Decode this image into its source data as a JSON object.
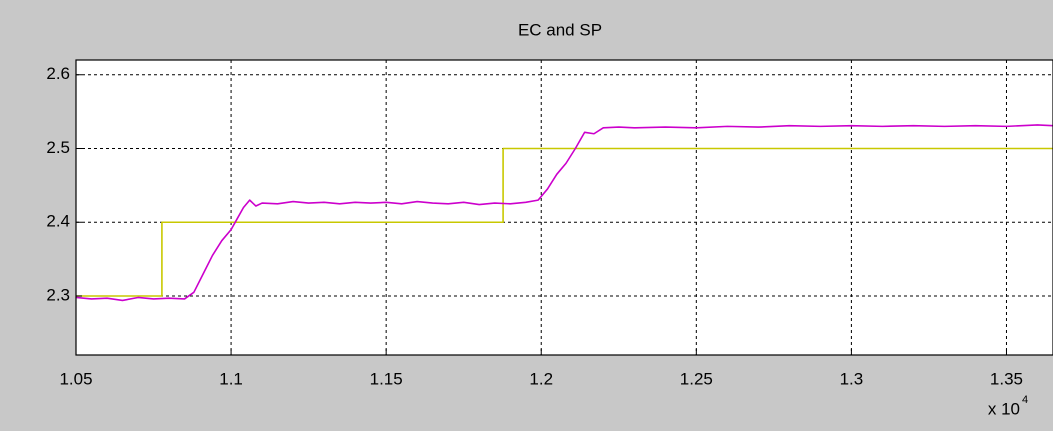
{
  "chart_data": {
    "type": "line",
    "title": "EC and SP",
    "xlim": [
      10500,
      13650
    ],
    "ylim": [
      2.22,
      2.62
    ],
    "xticks": [
      {
        "value": 10500,
        "label": "1.05"
      },
      {
        "value": 11000,
        "label": "1.1"
      },
      {
        "value": 11500,
        "label": "1.15"
      },
      {
        "value": 12000,
        "label": "1.2"
      },
      {
        "value": 12500,
        "label": "1.25"
      },
      {
        "value": 13000,
        "label": "1.3"
      },
      {
        "value": 13500,
        "label": "1.35"
      }
    ],
    "yticks": [
      {
        "value": 2.3,
        "label": "2.3"
      },
      {
        "value": 2.4,
        "label": "2.4"
      },
      {
        "value": 2.5,
        "label": "2.5"
      },
      {
        "value": 2.6,
        "label": "2.6"
      }
    ],
    "x_exponent_base": "x 10",
    "x_exponent": "4",
    "grid": true,
    "series": [
      {
        "color": "#c8c800",
        "x": [
          10500,
          10777,
          10777,
          11877,
          11877,
          13650
        ],
        "values": [
          2.3,
          2.3,
          2.4,
          2.4,
          2.5,
          2.5
        ]
      },
      {
        "color": "#cc00cc",
        "x": [
          10500,
          10550,
          10600,
          10650,
          10700,
          10750,
          10800,
          10850,
          10880,
          10910,
          10940,
          10970,
          11000,
          11020,
          11040,
          11060,
          11080,
          11100,
          11150,
          11200,
          11250,
          11300,
          11350,
          11400,
          11450,
          11500,
          11550,
          11600,
          11650,
          11700,
          11750,
          11800,
          11850,
          11900,
          11950,
          11990,
          12020,
          12050,
          12080,
          12110,
          12140,
          12170,
          12200,
          12250,
          12300,
          12400,
          12500,
          12600,
          12700,
          12800,
          12900,
          13000,
          13100,
          13200,
          13300,
          13400,
          13500,
          13600,
          13650
        ],
        "values": [
          2.298,
          2.296,
          2.297,
          2.294,
          2.298,
          2.296,
          2.297,
          2.296,
          2.305,
          2.33,
          2.355,
          2.375,
          2.39,
          2.405,
          2.42,
          2.43,
          2.422,
          2.426,
          2.425,
          2.428,
          2.426,
          2.427,
          2.425,
          2.427,
          2.426,
          2.427,
          2.425,
          2.428,
          2.426,
          2.425,
          2.427,
          2.424,
          2.426,
          2.425,
          2.427,
          2.43,
          2.445,
          2.465,
          2.48,
          2.5,
          2.522,
          2.52,
          2.528,
          2.529,
          2.528,
          2.529,
          2.528,
          2.53,
          2.529,
          2.531,
          2.53,
          2.531,
          2.53,
          2.531,
          2.53,
          2.531,
          2.53,
          2.532,
          2.531
        ]
      }
    ]
  }
}
